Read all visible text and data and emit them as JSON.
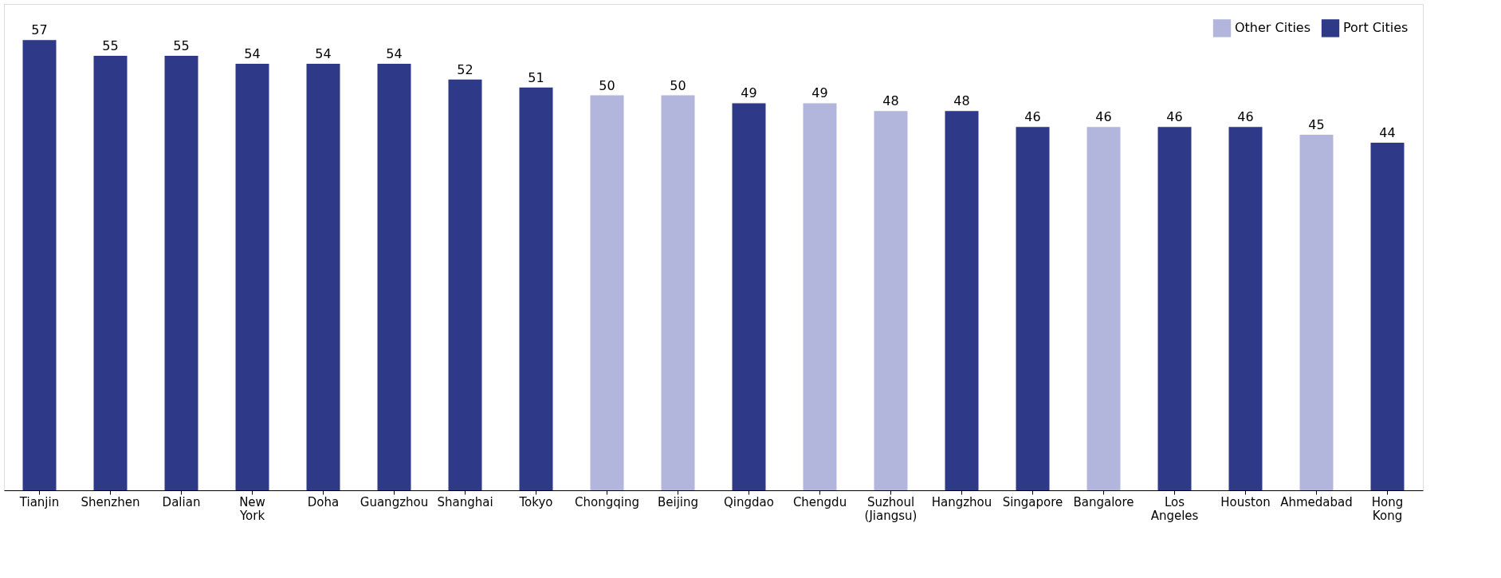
{
  "chart_data": {
    "type": "bar",
    "categories": [
      "Tianjin",
      "Shenzhen",
      "Dalian",
      "New York",
      "Doha",
      "Guangzhou",
      "Shanghai",
      "Tokyo",
      "Chongqing",
      "Beijing",
      "Qingdao",
      "Chengdu",
      "Suzhoul (Jiangsu)",
      "Hangzhou",
      "Singapore",
      "Bangalore",
      "Los Angeles",
      "Houston",
      "Ahmedabad",
      "Hong Kong"
    ],
    "series": [
      {
        "name": "Other Cities",
        "color": "#b3b6dc",
        "values": [
          null,
          null,
          null,
          null,
          null,
          null,
          null,
          null,
          50,
          50,
          null,
          49,
          48,
          null,
          null,
          46,
          null,
          null,
          45,
          null
        ]
      },
      {
        "name": "Port Cities",
        "color": "#2e3a87",
        "values": [
          57,
          55,
          55,
          54,
          54,
          54,
          52,
          51,
          null,
          null,
          49,
          null,
          null,
          48,
          46,
          null,
          46,
          46,
          null,
          44
        ]
      }
    ],
    "data_labels": true,
    "legend": "top right",
    "grid": false
  }
}
